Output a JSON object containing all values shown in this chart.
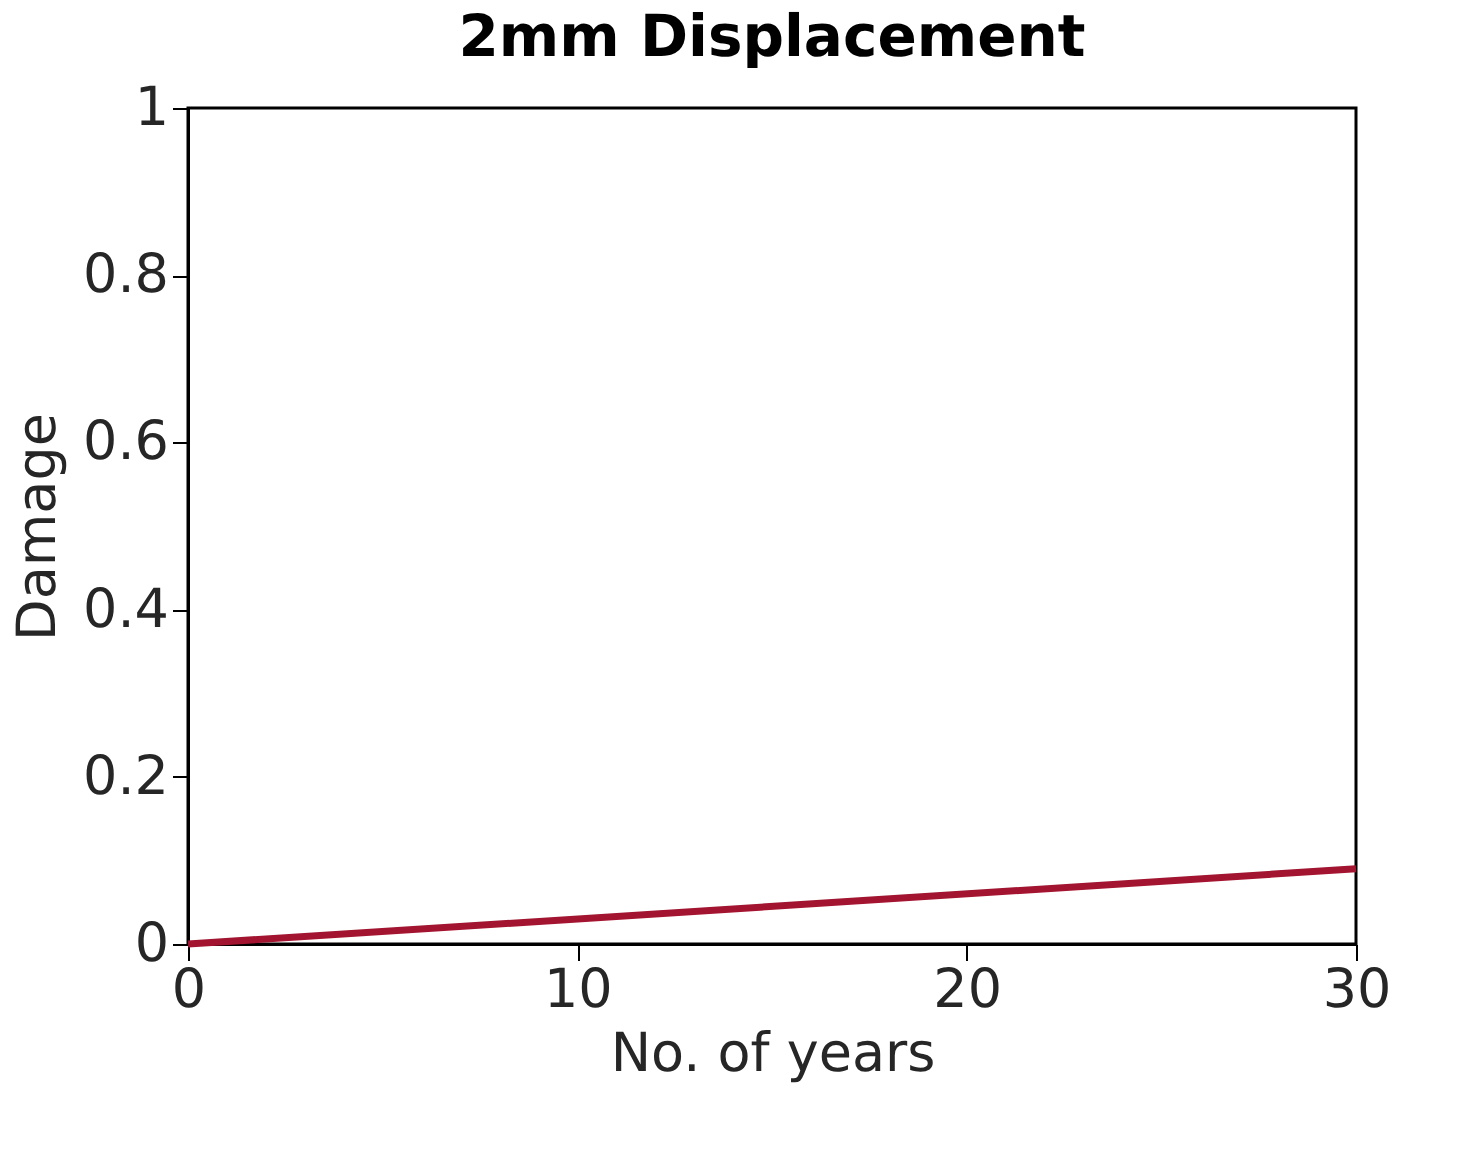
{
  "chart_data": {
    "type": "line",
    "title": "2mm Displacement",
    "xlabel": "No. of years",
    "ylabel": "Damage",
    "x": [
      0,
      30
    ],
    "series": [
      {
        "color": "#a2142f",
        "values": [
          0,
          0.09
        ]
      }
    ],
    "xlim": [
      0,
      30
    ],
    "xticks": [
      0,
      10,
      20,
      30
    ],
    "ylim": [
      0,
      1
    ],
    "yticks": [
      0,
      0.2,
      0.4,
      0.6,
      0.8,
      1
    ],
    "grid": false,
    "legend": false,
    "marker": "none",
    "line_style": "solid"
  }
}
